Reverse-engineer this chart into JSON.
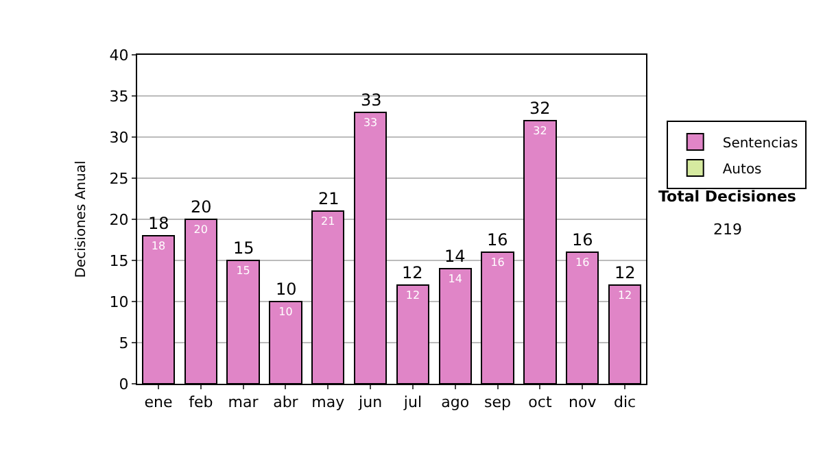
{
  "chart_data": {
    "type": "bar",
    "ylabel": "Decisiones Anual",
    "categories": [
      "ene",
      "feb",
      "mar",
      "abr",
      "may",
      "jun",
      "jul",
      "ago",
      "sep",
      "oct",
      "nov",
      "dic"
    ],
    "series": [
      {
        "name": "Sentencias",
        "color": "#e085c7",
        "values": [
          18,
          20,
          15,
          10,
          21,
          33,
          12,
          14,
          16,
          32,
          16,
          12
        ]
      },
      {
        "name": "Autos",
        "color": "#d6eaa0",
        "values": [
          null,
          null,
          null,
          null,
          null,
          null,
          null,
          null,
          null,
          null,
          null,
          null
        ]
      }
    ],
    "stacked": true,
    "data_labels": true,
    "totals": [
      "18",
      "20",
      "15",
      "10",
      "21",
      "33",
      "12",
      "14",
      "16",
      "32",
      "16",
      "12"
    ],
    "ylim": [
      0,
      40
    ],
    "yticks": [
      0,
      5,
      10,
      15,
      20,
      25,
      30,
      35,
      40
    ],
    "grid": "y",
    "legend": "right",
    "annotations": [
      "Total Decisiones",
      "219"
    ]
  }
}
